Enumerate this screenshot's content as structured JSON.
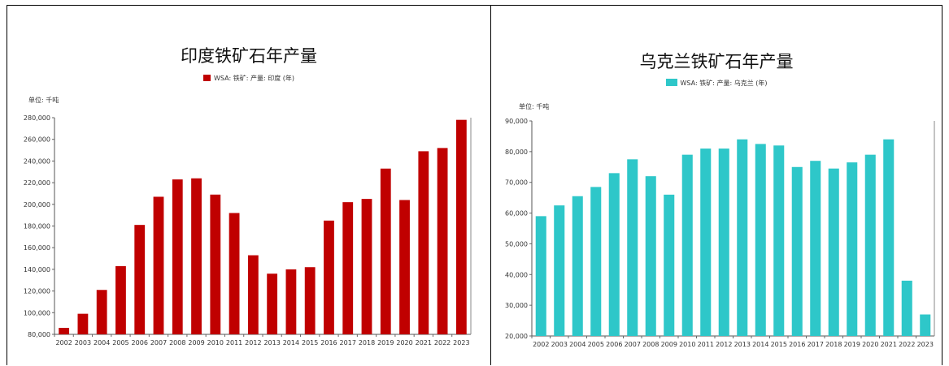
{
  "chart_data": [
    {
      "type": "bar",
      "title": "印度铁矿石年产量",
      "legend": "WSA: 铁矿: 产量: 印度 (年)",
      "unit": "单位: 千吨",
      "color": "#c00000",
      "categories": [
        "2002",
        "2003",
        "2004",
        "2005",
        "2006",
        "2007",
        "2008",
        "2009",
        "2010",
        "2011",
        "2012",
        "2013",
        "2014",
        "2015",
        "2016",
        "2017",
        "2018",
        "2019",
        "2020",
        "2021",
        "2022",
        "2023"
      ],
      "values": [
        86000,
        99000,
        121000,
        143000,
        181000,
        207000,
        223000,
        224000,
        209000,
        192000,
        153000,
        136000,
        140000,
        142000,
        185000,
        202000,
        205000,
        233000,
        204000,
        249000,
        252000,
        278000
      ],
      "ylim": [
        80000,
        280000
      ],
      "yticks": [
        "80,000",
        "100,000",
        "120,000",
        "140,000",
        "160,000",
        "180,000",
        "200,000",
        "220,000",
        "240,000",
        "260,000",
        "280,000"
      ]
    },
    {
      "type": "bar",
      "title": "乌克兰铁矿石年产量",
      "legend": "WSA: 铁矿: 产量: 乌克兰 (年)",
      "unit": "单位: 千吨",
      "color": "#2ec7c9",
      "categories": [
        "2002",
        "2003",
        "2004",
        "2005",
        "2006",
        "2007",
        "2008",
        "2009",
        "2010",
        "2011",
        "2012",
        "2013",
        "2014",
        "2015",
        "2016",
        "2017",
        "2018",
        "2019",
        "2020",
        "2021",
        "2022",
        "2023"
      ],
      "values": [
        59000,
        62500,
        65500,
        68500,
        73000,
        77500,
        72000,
        66000,
        79000,
        81000,
        81000,
        84000,
        82500,
        82000,
        75000,
        77000,
        74500,
        76500,
        79000,
        84000,
        38000,
        27000
      ],
      "ylim": [
        20000,
        90000
      ],
      "yticks": [
        "20,000",
        "30,000",
        "40,000",
        "50,000",
        "60,000",
        "70,000",
        "80,000",
        "90,000"
      ]
    }
  ]
}
